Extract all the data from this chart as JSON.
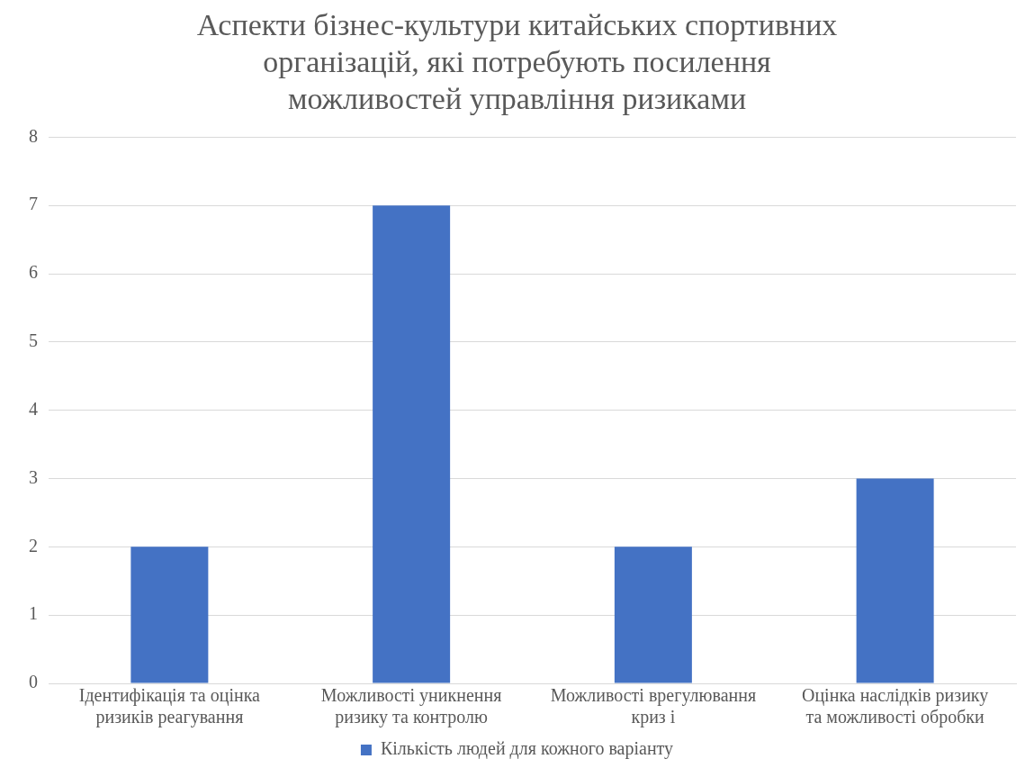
{
  "chart_data": {
    "type": "bar",
    "title": "Аспекти бізнес-культури китайських спортивних організацій, які потребують посилення можливостей управління ризиками",
    "categories": [
      "Ідентифікація та оцінка ризиків реагування",
      "Можливості уникнення ризику та контролю",
      "Можливості врегулювання криз і",
      "Оцінка наслідків ризику та можливості обробки"
    ],
    "series": [
      {
        "name": "Кількість людей для кожного варіанту",
        "color": "#4472c4",
        "values": [
          2,
          7,
          2,
          3
        ]
      }
    ],
    "ylim": [
      0,
      8
    ],
    "yticks": [
      0,
      1,
      2,
      3,
      4,
      5,
      6,
      7,
      8
    ],
    "grid": "y",
    "legend": "bottom"
  }
}
